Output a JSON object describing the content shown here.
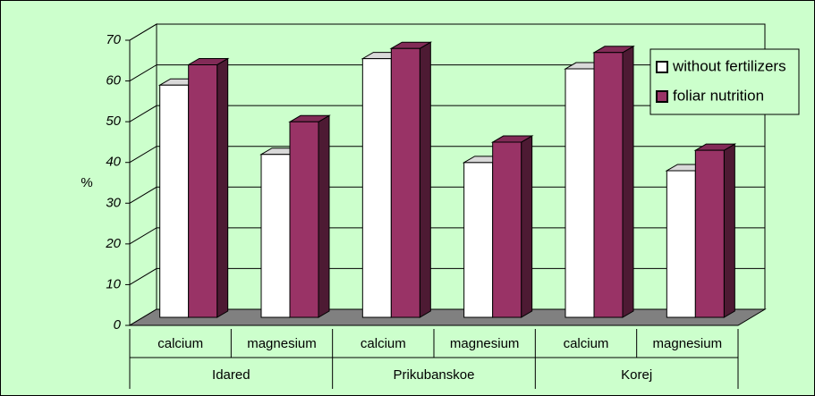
{
  "chart_data": {
    "type": "bar3d",
    "y_label": "%",
    "categories": [
      "calcium",
      "magnesium",
      "calcium",
      "magnesium",
      "calcium",
      "magnesium"
    ],
    "groups": [
      "Idared",
      "Prikubanskoe",
      "Korej"
    ],
    "series": [
      {
        "name": "without fertilizers",
        "color": "#ffffff",
        "values": [
          57,
          40,
          63.5,
          38,
          61,
          36
        ]
      },
      {
        "name": "foliar nutrition",
        "color": "#993366",
        "values": [
          62,
          48,
          66,
          43,
          65,
          41
        ]
      }
    ],
    "ylim": [
      0,
      70
    ],
    "yticks": [
      0,
      10,
      20,
      30,
      40,
      50,
      60,
      70
    ],
    "grid": true,
    "legend": "right",
    "background": "#ccffcc",
    "floor_color": "#808080"
  }
}
